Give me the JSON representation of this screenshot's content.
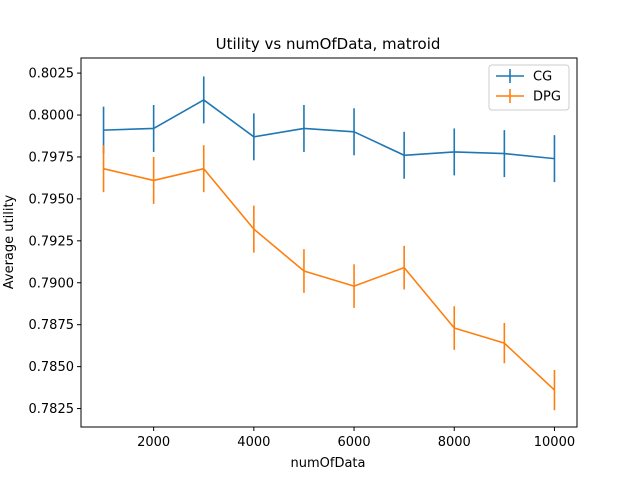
{
  "chart_data": {
    "type": "line",
    "title": "Utility vs numOfData, matroid",
    "xlabel": "numOfData",
    "ylabel": "Average utility",
    "x": [
      1000,
      2000,
      3000,
      4000,
      5000,
      6000,
      7000,
      8000,
      9000,
      10000
    ],
    "xlim": [
      550,
      10450
    ],
    "ylim": [
      0.7814,
      0.8034
    ],
    "xticks": [
      2000,
      4000,
      6000,
      8000,
      10000
    ],
    "xtick_labels": [
      "2000",
      "4000",
      "6000",
      "8000",
      "10000"
    ],
    "yticks": [
      0.7825,
      0.785,
      0.7875,
      0.79,
      0.7925,
      0.795,
      0.7975,
      0.8,
      0.8025
    ],
    "ytick_labels": [
      "0.7825",
      "0.7850",
      "0.7875",
      "0.7900",
      "0.7925",
      "0.7950",
      "0.7975",
      "0.8000",
      "0.8025"
    ],
    "grid": false,
    "legend_position": "top-right",
    "series": [
      {
        "name": "CG",
        "color": "#1f77b4",
        "values": [
          0.7991,
          0.7992,
          0.8009,
          0.7987,
          0.7992,
          0.799,
          0.7976,
          0.7978,
          0.7977,
          0.7974
        ],
        "errors": [
          0.0014,
          0.0014,
          0.0014,
          0.0014,
          0.0014,
          0.0014,
          0.0014,
          0.0014,
          0.0014,
          0.0014
        ]
      },
      {
        "name": "DPG",
        "color": "#ff7f0e",
        "values": [
          0.7968,
          0.7961,
          0.7968,
          0.7932,
          0.7907,
          0.7898,
          0.7909,
          0.7873,
          0.7864,
          0.7836
        ],
        "errors": [
          0.0014,
          0.0014,
          0.0014,
          0.0014,
          0.0013,
          0.0013,
          0.0013,
          0.0013,
          0.0012,
          0.0012
        ]
      }
    ]
  }
}
